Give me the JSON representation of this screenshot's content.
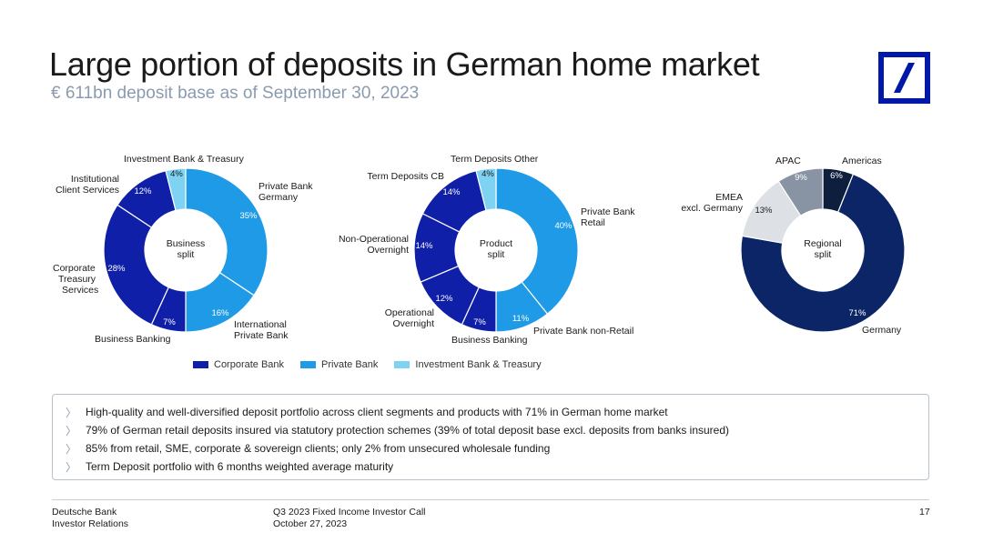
{
  "title": "Large portion of deposits in German home market",
  "subtitle": "€ 611bn deposit base as of September 30, 2023",
  "logo": {
    "icon": "deutsche-bank-logo",
    "color": "#0018a8"
  },
  "chart_data": [
    {
      "type": "pie",
      "variant": "donut",
      "center_label": [
        "Business",
        "split"
      ],
      "slices": [
        {
          "label": "Private Bank Germany",
          "value": 35,
          "value_label": "35%",
          "group": "Private Bank"
        },
        {
          "label": "International Private Bank",
          "value": 16,
          "value_label": "16%",
          "group": "Private Bank"
        },
        {
          "label": "Business Banking",
          "value": 7,
          "value_label": "7%",
          "group": "Corporate Bank"
        },
        {
          "label": "Corporate Treasury Services",
          "value": 28,
          "value_label": "28%",
          "group": "Corporate Bank"
        },
        {
          "label": "Institutional Client Services",
          "value": 12,
          "value_label": "12%",
          "group": "Corporate Bank"
        },
        {
          "label": "Investment Bank & Treasury",
          "value": 4,
          "value_label": "4%",
          "group": "Investment Bank & Treasury"
        }
      ]
    },
    {
      "type": "pie",
      "variant": "donut",
      "center_label": [
        "Product",
        "split"
      ],
      "slices": [
        {
          "label": "Private Bank Retail",
          "value": 40,
          "value_label": "40%",
          "group": "Private Bank"
        },
        {
          "label": "Private Bank non-Retail",
          "value": 11,
          "value_label": "11%",
          "group": "Private Bank"
        },
        {
          "label": "Business Banking",
          "value": 7,
          "value_label": "7%",
          "group": "Corporate Bank"
        },
        {
          "label": "Operational Overnight",
          "value": 12,
          "value_label": "12%",
          "group": "Corporate Bank"
        },
        {
          "label": "Non-Operational Overnight",
          "value": 14,
          "value_label": "14%",
          "group": "Corporate Bank"
        },
        {
          "label": "Term Deposits CB",
          "value": 14,
          "value_label": "14%",
          "group": "Corporate Bank"
        },
        {
          "label": "Term Deposits Other",
          "value": 4,
          "value_label": "4%",
          "group": "Investment Bank & Treasury"
        }
      ]
    },
    {
      "type": "pie",
      "variant": "donut",
      "center_label": [
        "Regional",
        "split"
      ],
      "slices": [
        {
          "label": "Americas",
          "value": 6,
          "value_label": "6%",
          "color": "#0d1f3c"
        },
        {
          "label": "Germany",
          "value": 71,
          "value_label": "71%",
          "color": "#0b2566"
        },
        {
          "label": "EMEA excl. Germany",
          "value": 13,
          "value_label": "13%",
          "color": "#dde1e6"
        },
        {
          "label": "APAC",
          "value": 9,
          "value_label": "9%",
          "color": "#8893a3"
        }
      ]
    }
  ],
  "legend": [
    {
      "label": "Corporate Bank",
      "color": "#0f1fa8"
    },
    {
      "label": "Private Bank",
      "color": "#1e9ae6"
    },
    {
      "label": "Investment Bank & Treasury",
      "color": "#7fd3f2"
    }
  ],
  "bullets": [
    "High-quality and well-diversified deposit portfolio across client segments and products with 71% in German home market",
    "79% of German retail deposits insured via statutory protection schemes (39% of total deposit base excl. deposits from banks insured)",
    "85% from retail, SME, corporate & sovereign clients; only 2% from unsecured wholesale funding",
    "Term Deposit portfolio with 6 months weighted average maturity"
  ],
  "footer": {
    "company": "Deutsche Bank",
    "department": "Investor Relations",
    "event": "Q3 2023 Fixed Income Investor Call",
    "date": "October 27, 2023",
    "page": "17"
  }
}
